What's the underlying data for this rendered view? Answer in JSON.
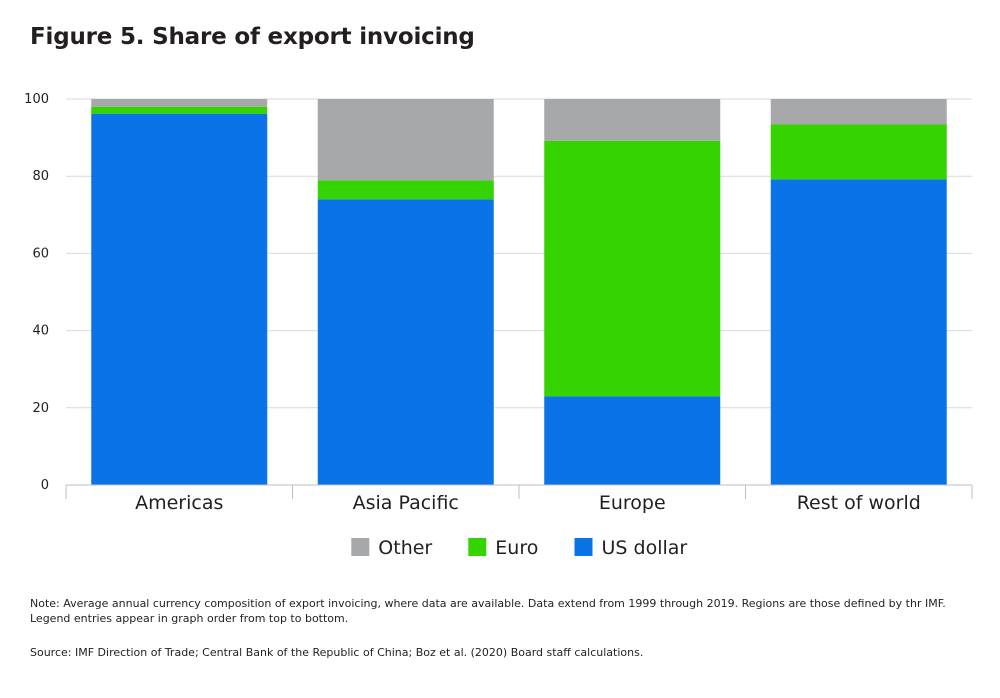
{
  "title": "Figure 5. Share of export invoicing",
  "chart_data": {
    "type": "bar",
    "stacked": true,
    "categories": [
      "Americas",
      "Asia Pacific",
      "Europe",
      "Rest of world"
    ],
    "series": [
      {
        "name": "US dollar",
        "color": "#0a73e8",
        "values": [
          96.2,
          74.0,
          23.0,
          79.2
        ]
      },
      {
        "name": "Euro",
        "color": "#35d300",
        "values": [
          1.8,
          4.9,
          66.2,
          14.2
        ]
      },
      {
        "name": "Other",
        "color": "#a7a8aa",
        "values": [
          2.0,
          21.1,
          10.8,
          6.6
        ]
      }
    ],
    "legend_order": [
      "Other",
      "Euro",
      "US dollar"
    ],
    "ylim": [
      0,
      100
    ],
    "yticks": [
      "0",
      "20",
      "40",
      "60",
      "80",
      "100"
    ],
    "grid": true,
    "legend_position": "bottom-center"
  },
  "note": "Note: Average annual currency composition of export invoicing, where data are available. Data extend from 1999 through 2019. Regions are those defined by thr IMF. Legend entries appear in graph order from top to bottom.",
  "source": "Source: IMF Direction of Trade; Central Bank of the Republic of China; Boz et al. (2020) Board staff calculations."
}
